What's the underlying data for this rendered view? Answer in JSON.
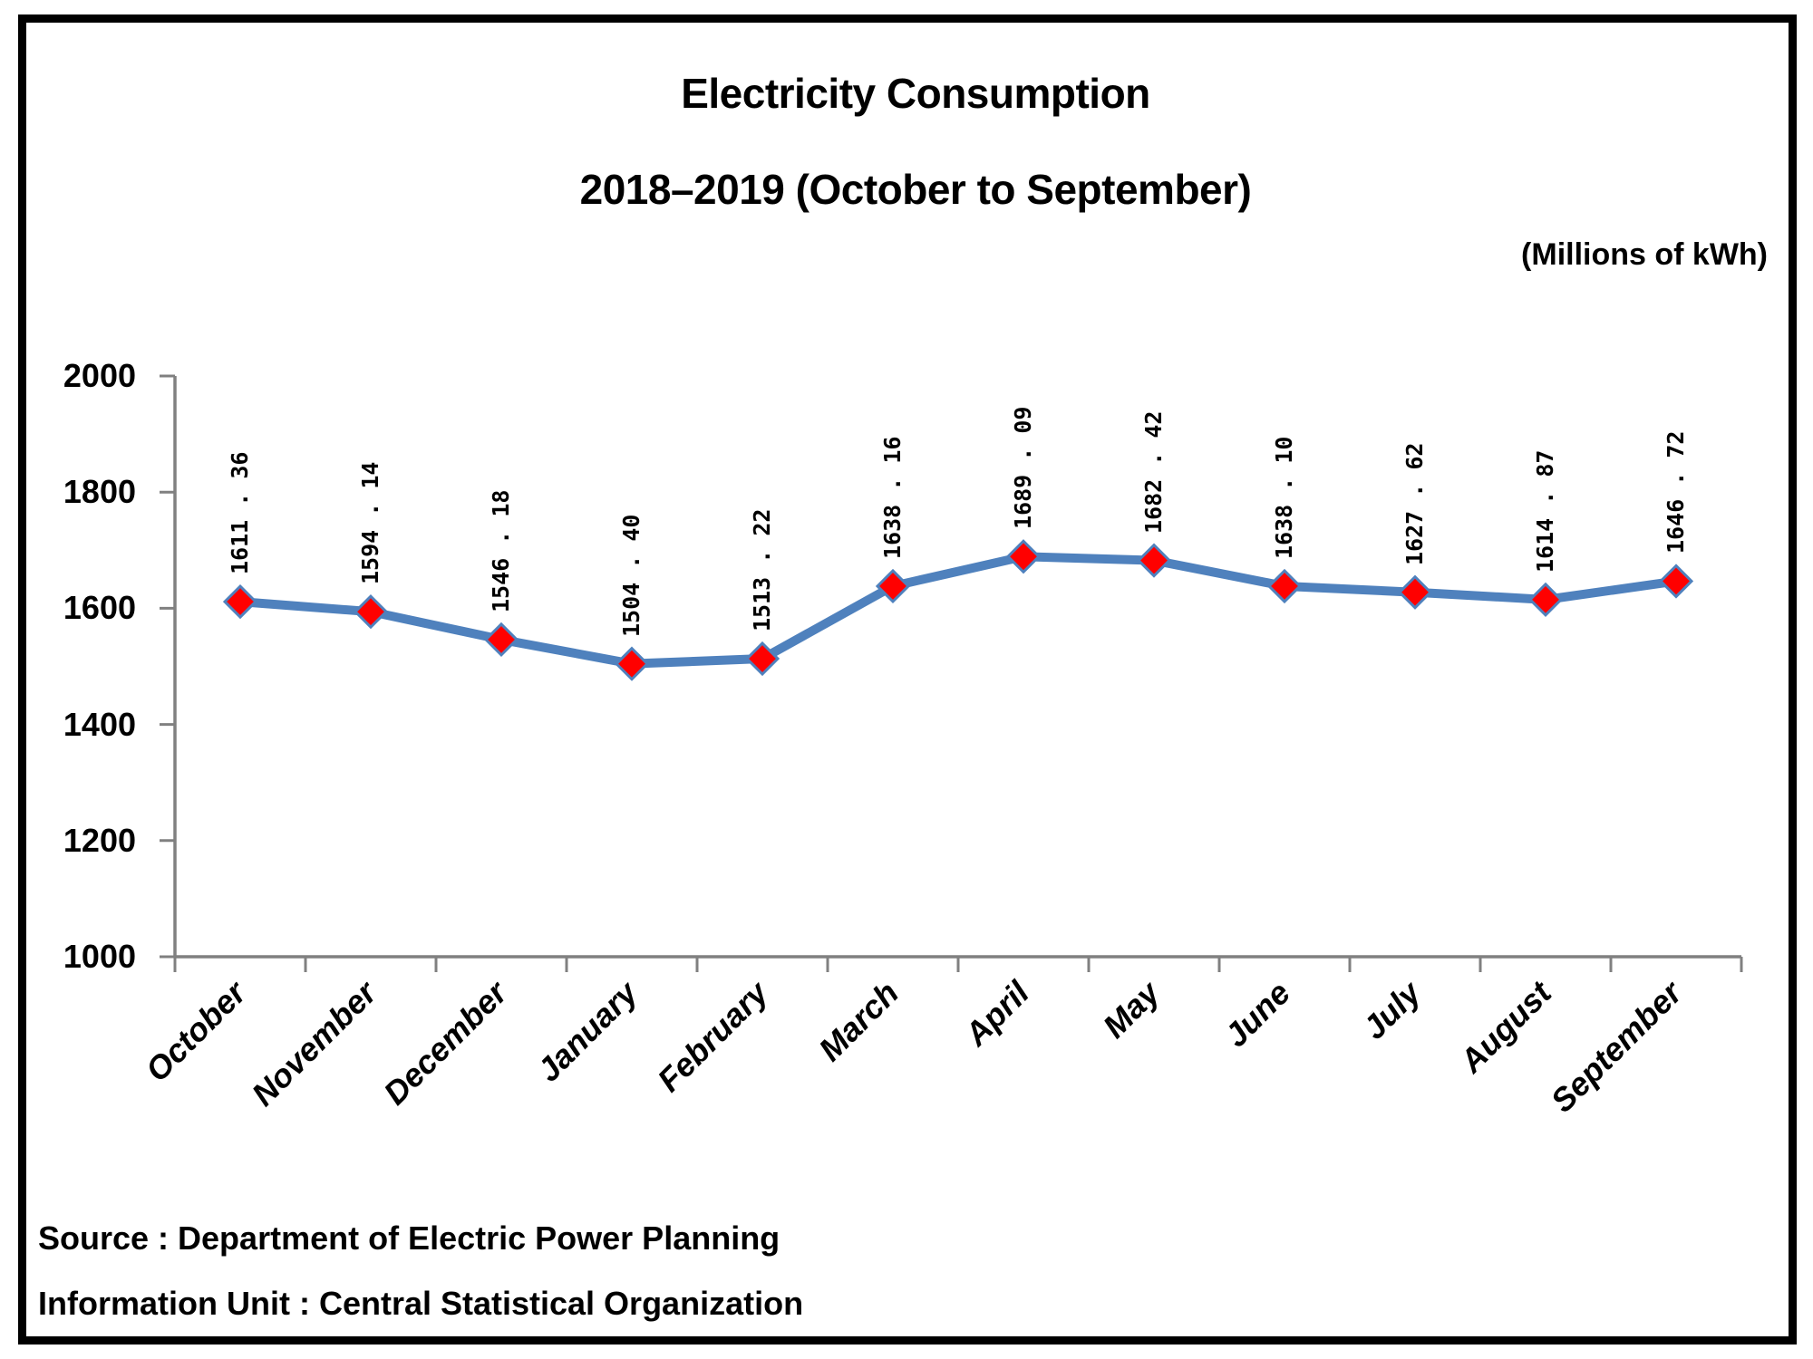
{
  "title": "Electricity Consumption",
  "subtitle": "2018–2019 (October to September)",
  "unit_label": "(Millions of kWh)",
  "source_line": "Source : Department of Electric Power Planning",
  "info_line": "Information Unit : Central Statistical Organization",
  "chart_data": {
    "type": "line",
    "title": "Electricity Consumption 2018–2019 (October to September)",
    "ylabel": "(Millions of kWh)",
    "categories": [
      "October",
      "November",
      "December",
      "January",
      "February",
      "March",
      "April",
      "May",
      "June",
      "July",
      "August",
      "September"
    ],
    "series": [
      {
        "name": "Electricity Consumption (Millions of kWh)",
        "values": [
          1611.36,
          1594.14,
          1546.18,
          1504.4,
          1513.22,
          1638.16,
          1689.09,
          1682.42,
          1638.1,
          1627.62,
          1614.87,
          1646.72
        ]
      }
    ],
    "ylim": [
      1000,
      2000
    ],
    "y_ticks": [
      1000,
      1200,
      1400,
      1600,
      1800,
      2000
    ],
    "grid": false,
    "legend_position": "none",
    "marker": "diamond",
    "data_labels_rotated_degrees": 90,
    "decimal_separator_display": " . ",
    "colors": {
      "line": "#4F81BD",
      "marker_fill": "#FF0000",
      "marker_stroke": "#4F81BD",
      "axis": "#808080",
      "text": "#000000",
      "frame": "#000000"
    }
  }
}
